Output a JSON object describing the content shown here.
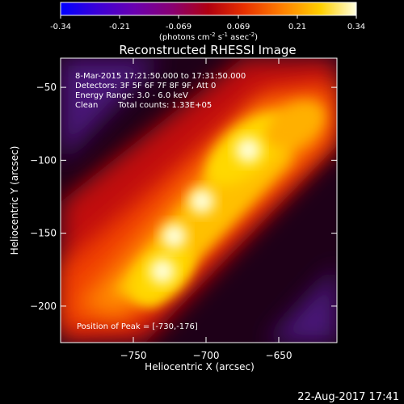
{
  "colorbar": {
    "ticks": [
      "-0.34",
      "-0.21",
      "-0.069",
      "0.069",
      "0.21",
      "0.34"
    ],
    "unit_label": "(photons cm",
    "unit_sup1": "-2",
    "unit_mid": " s",
    "unit_sup2": "-1",
    "unit_end": " asec",
    "unit_sup3": "-2",
    "unit_close": ")",
    "range": [
      -0.34,
      0.34
    ]
  },
  "chart_data": {
    "type": "heatmap",
    "title": "Reconstructed RHESSI Image",
    "xlabel": "Heliocentric X (arcsec)",
    "ylabel": "Heliocentric Y (arcsec)",
    "xlim": [
      -800,
      -610
    ],
    "ylim": [
      -225,
      -30
    ],
    "x_ticks": [
      -750,
      -700,
      -650
    ],
    "y_ticks": [
      -50,
      -100,
      -150,
      -200
    ],
    "x_tick_labels": [
      "−750",
      "−700",
      "−650"
    ],
    "y_tick_labels": [
      "−50",
      "−100",
      "−150",
      "−200"
    ],
    "colormap": "hot/purple",
    "peaks": [
      {
        "x": -730,
        "y": -176,
        "value": 0.34
      },
      {
        "x": -722,
        "y": -152,
        "value": 0.33
      },
      {
        "x": -703,
        "y": -128,
        "value": 0.32
      },
      {
        "x": -671,
        "y": -93,
        "value": 0.34
      }
    ],
    "annotations": {
      "time": "8-Mar-2015 17:21:50.000 to 17:31:50.000",
      "detectors": "Detectors: 3F 5F 6F 7F 8F 9F, Att 0",
      "energy": "Energy Range: 3.0 - 6.0 keV",
      "method": "Clean",
      "counts": "Total counts: 1.33E+05",
      "peak": "Position of Peak = [-730,-176]"
    }
  },
  "footer": {
    "date": "22-Aug-2017 17:41"
  }
}
